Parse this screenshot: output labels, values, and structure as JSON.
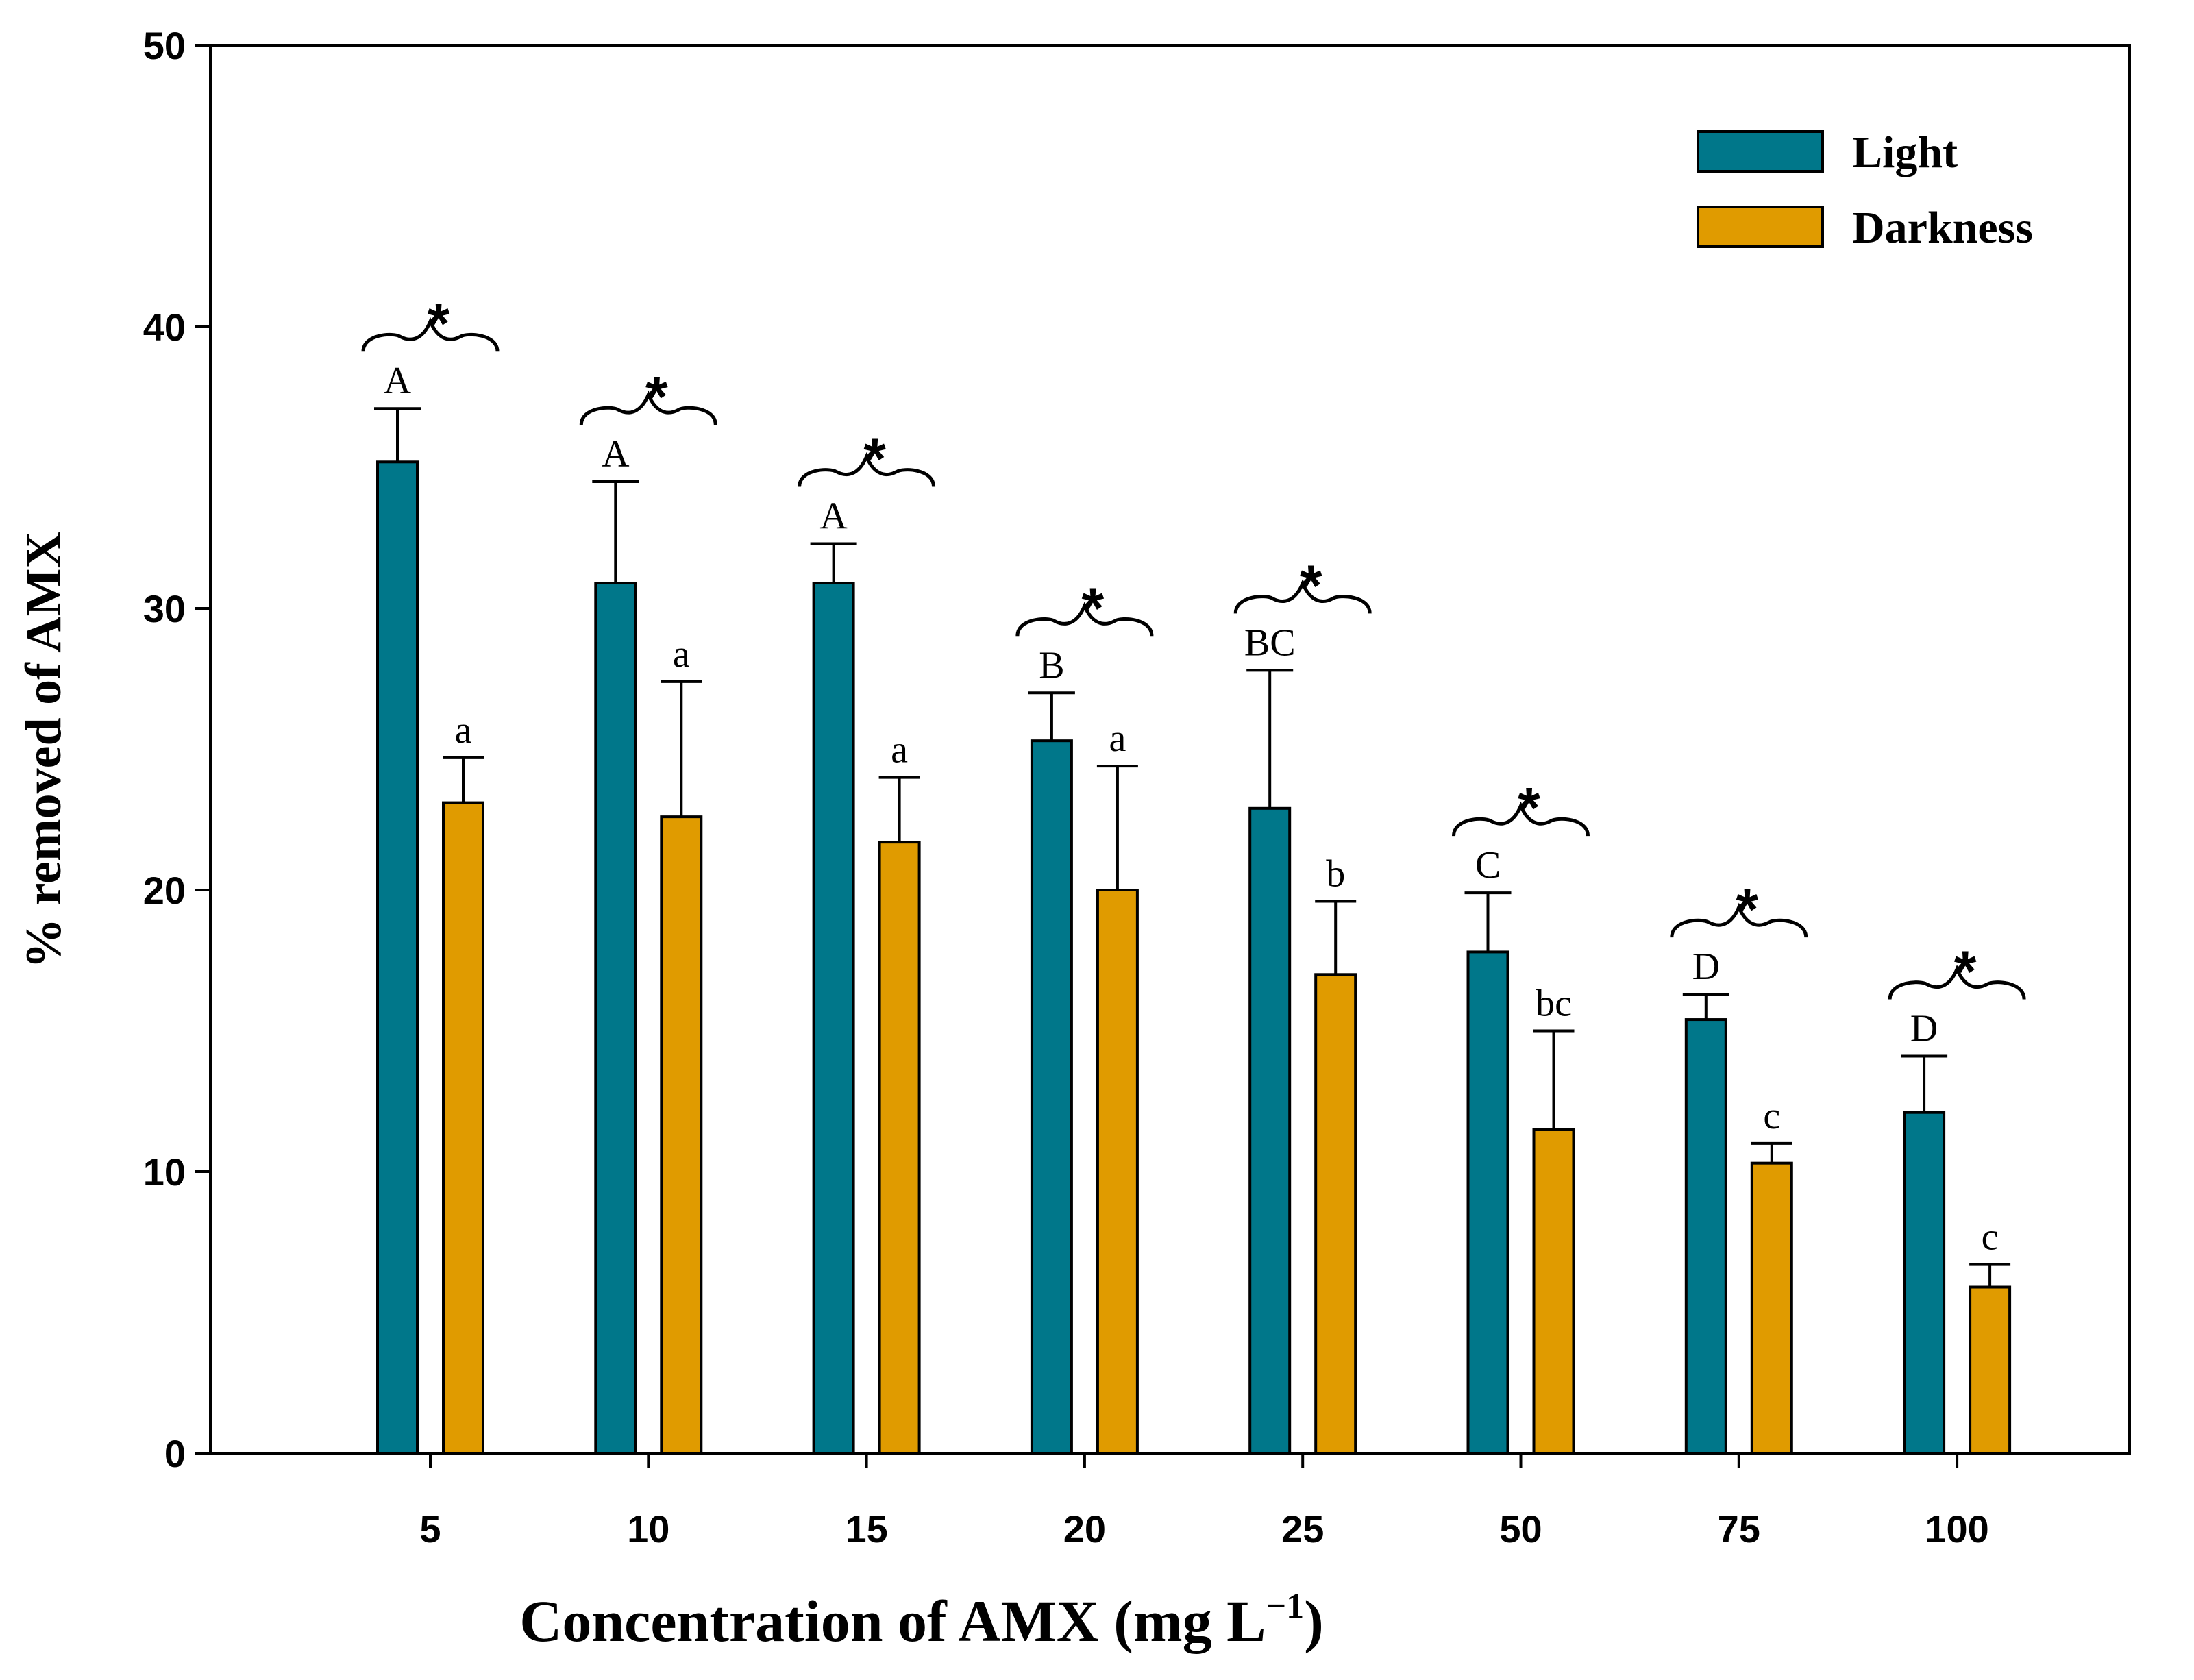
{
  "chart_data": {
    "type": "bar",
    "title": "",
    "xlabel": "Concentration of AMX (mg L",
    "xlabel_sup": "−1",
    "xlabel_end": ")",
    "ylabel": "% removed of AMX",
    "ylim": [
      0,
      50
    ],
    "yticks": [
      "0",
      "10",
      "20",
      "30",
      "40",
      "50"
    ],
    "categories": [
      "5",
      "10",
      "15",
      "20",
      "25",
      "50",
      "75",
      "100"
    ],
    "legend_position": "top-right",
    "series": [
      {
        "name": "Light",
        "color": "#00778a",
        "values": [
          35.2,
          30.9,
          30.9,
          25.3,
          22.9,
          17.8,
          15.4,
          12.1
        ],
        "errors": [
          1.9,
          3.6,
          1.4,
          1.7,
          4.9,
          2.1,
          0.9,
          2.0
        ],
        "letters": [
          "A",
          "A",
          "A",
          "B",
          "BC",
          "C",
          "D",
          "D"
        ]
      },
      {
        "name": "Darkness",
        "color": "#e09b00",
        "values": [
          23.1,
          22.6,
          21.7,
          20.0,
          17.0,
          11.5,
          10.3,
          5.9
        ],
        "errors": [
          1.6,
          4.8,
          2.3,
          4.4,
          2.6,
          3.5,
          0.7,
          0.8
        ],
        "letters": [
          "a",
          "a",
          "a",
          "a",
          "b",
          "bc",
          "c",
          "c"
        ]
      }
    ],
    "significance": {
      "marker": "*",
      "flags": [
        true,
        true,
        true,
        true,
        true,
        true,
        true,
        true
      ]
    }
  }
}
